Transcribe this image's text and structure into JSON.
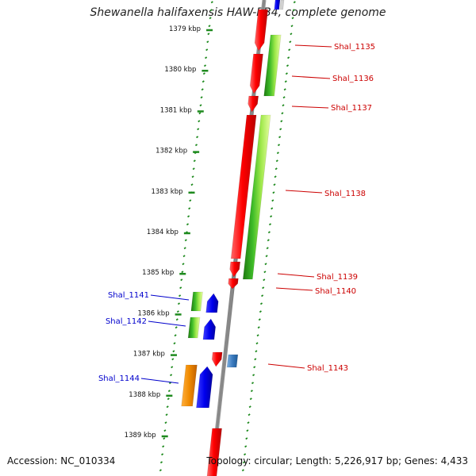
{
  "title": "Shewanella halifaxensis HAW-EB4, complete genome",
  "footer": {
    "accession": "Accession: NC_010334",
    "summary": "Topology: circular; Length: 5,226,917 bp; Genes: 4,433"
  },
  "ruler": [
    "1379 kbp",
    "1380 kbp",
    "1381 kbp",
    "1382 kbp",
    "1383 kbp",
    "1384 kbp",
    "1385 kbp",
    "1386 kbp",
    "1387 kbp",
    "1388 kbp",
    "1389 kbp"
  ],
  "colors": {
    "backbone": "#888888",
    "ruler_ticks": "#1e8a1e",
    "gene_red": "#e00000",
    "gene_blue": "#0000ee",
    "gene_green": "#2e9e1e",
    "gene_lime": "#b8f060",
    "gene_orange": "#f09010",
    "gene_steel": "#4a86c0",
    "label_red": "#cc0000",
    "label_blue": "#0000cc"
  },
  "genes": [
    {
      "label": "Shal_1135"
    },
    {
      "label": "Shal_1136"
    },
    {
      "label": "Shal_1137"
    },
    {
      "label": "Shal_1138"
    },
    {
      "label": "Shal_1139"
    },
    {
      "label": "Shal_1140"
    },
    {
      "label": "Shal_1141"
    },
    {
      "label": "Shal_1142"
    },
    {
      "label": "Shal_1143"
    },
    {
      "label": "Shal_1144"
    }
  ]
}
